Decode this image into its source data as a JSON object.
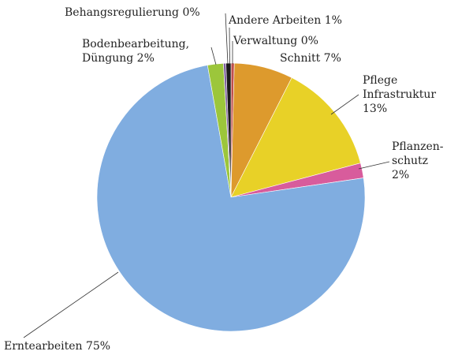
{
  "chart_data": {
    "type": "pie",
    "categories": [
      "Verwaltung",
      "Schnitt",
      "Pflege\nInfrastruktur",
      "Pflanzen-\nschutz",
      "Erntearbeiten",
      "Bodenbearbeitung,\nDüngung",
      "Behangsregulierung",
      "Andere Arbeiten"
    ],
    "values": [
      0.4,
      7.1,
      13.4,
      1.8,
      74.5,
      1.9,
      0.3,
      0.6
    ],
    "value_labels": [
      "0%",
      "7%",
      "13%",
      "2%",
      "75%",
      "2%",
      "0%",
      "1%"
    ],
    "colors": [
      "#c0504d",
      "#dd9a2d",
      "#e8d127",
      "#d85c9c",
      "#80ade0",
      "#9cc63b",
      "#7f5fa0",
      "#1a1a1a"
    ]
  }
}
